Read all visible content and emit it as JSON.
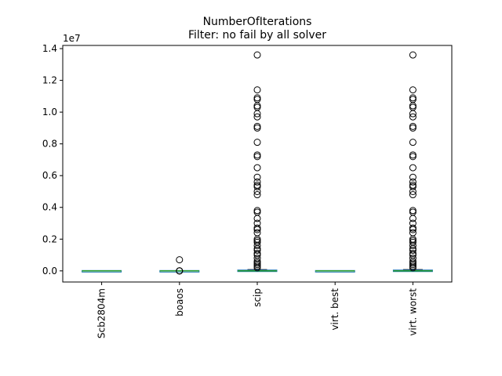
{
  "chart_data": {
    "type": "box",
    "title": "NumberOfIterations",
    "subtitle": "Filter: no fail by all solver",
    "xlabel": "",
    "ylabel": "",
    "y_offset_label": "1e7",
    "y_scale": 10000000,
    "ylim": [
      -0.07,
      1.42
    ],
    "y_ticks": [
      0.0,
      0.2,
      0.4,
      0.6,
      0.8,
      1.0,
      1.2,
      1.4
    ],
    "y_tick_labels": [
      "0.0",
      "0.2",
      "0.4",
      "0.6",
      "0.8",
      "1.0",
      "1.2",
      "1.4"
    ],
    "categories": [
      "Scb2804m",
      "boaos",
      "scip",
      "virt. best",
      "virt. worst"
    ],
    "box_color": "#1f77b4",
    "median_color": "#2ca02c",
    "boxes": [
      {
        "name": "Scb2804m",
        "q1": 0.0,
        "median": 0.0,
        "q3": 0.0,
        "whisker_low": 0.0,
        "whisker_high": 0.0,
        "outliers": []
      },
      {
        "name": "boaos",
        "q1": 0.0,
        "median": 0.0,
        "q3": 0.0,
        "whisker_low": 0.0,
        "whisker_high": 0.0,
        "outliers": [
          0.0,
          0.0,
          0.0,
          0.07
        ]
      },
      {
        "name": "scip",
        "q1": 0.0,
        "median": 0.0,
        "q3": 0.003,
        "whisker_low": 0.0,
        "whisker_high": 0.008,
        "outliers": [
          1.36,
          1.14,
          1.09,
          1.08,
          1.04,
          1.03,
          0.99,
          0.97,
          0.91,
          0.9,
          0.81,
          0.73,
          0.72,
          0.65,
          0.59,
          0.56,
          0.54,
          0.53,
          0.5,
          0.48,
          0.38,
          0.37,
          0.33,
          0.3,
          0.27,
          0.26,
          0.24,
          0.2,
          0.19,
          0.18,
          0.16,
          0.14,
          0.13,
          0.11,
          0.1,
          0.08,
          0.06,
          0.05,
          0.04,
          0.03,
          0.02
        ]
      },
      {
        "name": "virt. best",
        "q1": 0.0,
        "median": 0.0,
        "q3": 0.0,
        "whisker_low": 0.0,
        "whisker_high": 0.0,
        "outliers": []
      },
      {
        "name": "virt. worst",
        "q1": 0.0,
        "median": 0.0,
        "q3": 0.003,
        "whisker_low": 0.0,
        "whisker_high": 0.008,
        "outliers": [
          1.36,
          1.14,
          1.09,
          1.08,
          1.04,
          1.03,
          0.99,
          0.97,
          0.91,
          0.9,
          0.81,
          0.73,
          0.72,
          0.65,
          0.59,
          0.56,
          0.54,
          0.53,
          0.5,
          0.48,
          0.38,
          0.37,
          0.33,
          0.3,
          0.27,
          0.26,
          0.24,
          0.2,
          0.19,
          0.18,
          0.16,
          0.14,
          0.13,
          0.11,
          0.1,
          0.08,
          0.06,
          0.05,
          0.04,
          0.03,
          0.02
        ]
      }
    ],
    "grid": false,
    "legend": "none"
  }
}
